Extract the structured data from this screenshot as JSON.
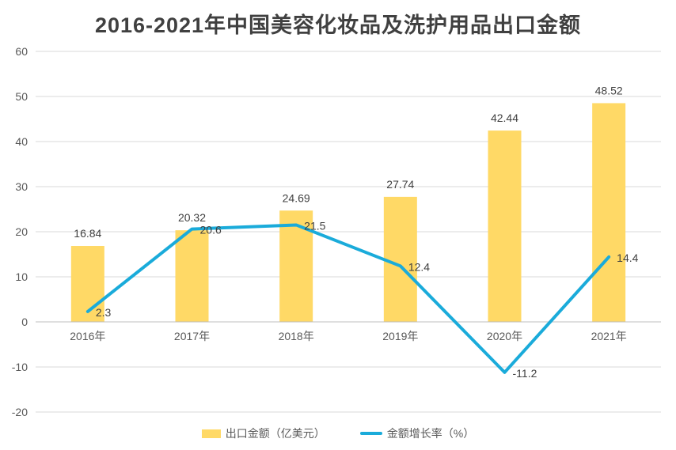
{
  "chart_data": {
    "type": "bar",
    "title": "2016-2021年中国美容化妆品及洗护用品出口金额",
    "categories": [
      "2016年",
      "2017年",
      "2018年",
      "2019年",
      "2020年",
      "2021年"
    ],
    "series": [
      {
        "name": "出口金额（亿美元）",
        "type": "bar",
        "values": [
          16.84,
          20.32,
          24.69,
          27.74,
          42.44,
          48.52
        ],
        "color": "#FFD966"
      },
      {
        "name": "金额增长率（%）",
        "type": "line",
        "values": [
          2.3,
          20.6,
          21.5,
          12.4,
          -11.2,
          14.4
        ],
        "color": "#1AABDA"
      }
    ],
    "value_labels_bar": [
      "16.84",
      "20.32",
      "24.69",
      "27.74",
      "42.44",
      "48.52"
    ],
    "value_labels_line": [
      "2.3",
      "20.6",
      "21.5",
      "12.4",
      "-11.2",
      "14.4"
    ],
    "y_ticks": [
      "60",
      "50",
      "40",
      "30",
      "20",
      "10",
      "0",
      "-10",
      "-20"
    ],
    "ylim": [
      -20,
      60
    ],
    "grid": true,
    "legend_position": "bottom"
  }
}
